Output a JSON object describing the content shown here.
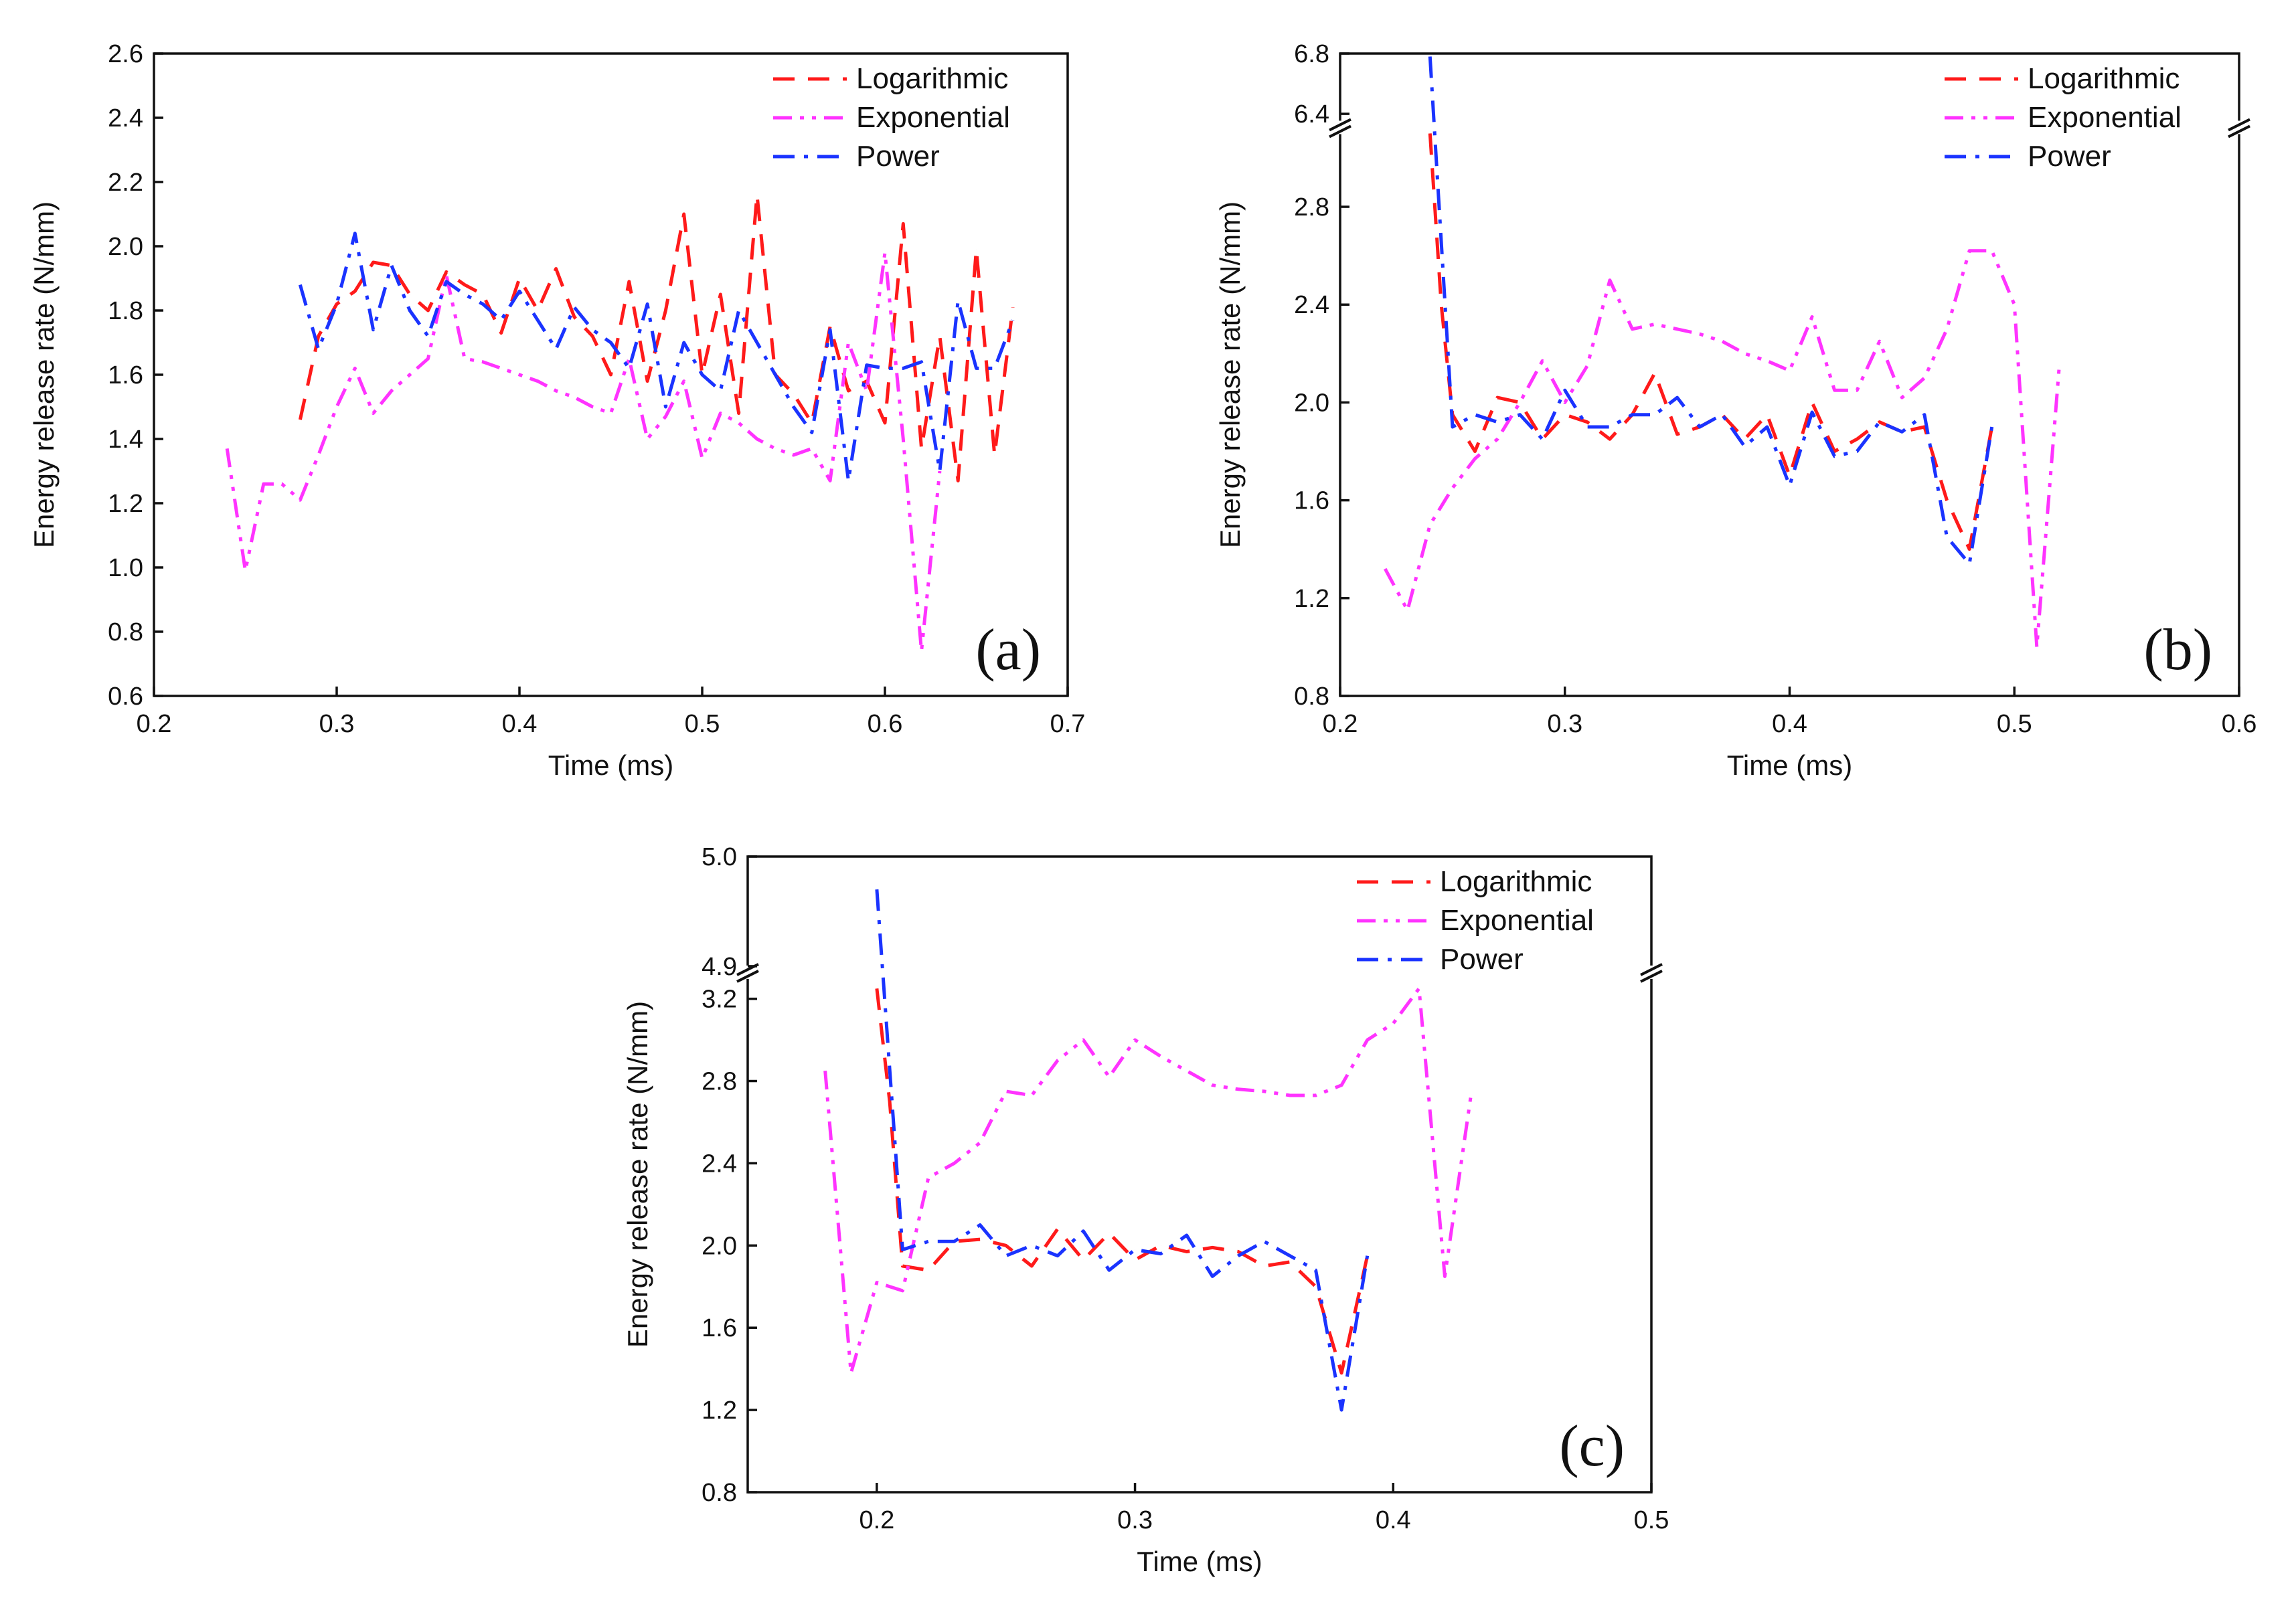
{
  "figure": {
    "background": "#ffffff"
  },
  "series_styles": [
    {
      "name": "Logarithmic",
      "color": "#ff1a1a",
      "dash": "dashed"
    },
    {
      "name": "Exponential",
      "color": "#ff33ff",
      "dash": "dash-dot-dot"
    },
    {
      "name": "Power",
      "color": "#1a33ff",
      "dash": "dash-dot"
    }
  ],
  "chart_data": [
    {
      "type": "line",
      "panel_label": "(a)",
      "xlabel": "Time (ms)",
      "ylabel": "Energy release rate (N/mm)",
      "xlim": [
        0.2,
        0.7
      ],
      "xticks": [
        "0.2",
        "0.3",
        "0.4",
        "0.5",
        "0.6",
        "0.7"
      ],
      "ylim": [
        0.6,
        2.6
      ],
      "yticks": [
        "0.6",
        "0.8",
        "1.0",
        "1.2",
        "1.4",
        "1.6",
        "1.8",
        "2.0",
        "2.2",
        "2.4",
        "2.6"
      ],
      "legend": [
        "Logarithmic",
        "Exponential",
        "Power"
      ],
      "legend_position": "top-right",
      "series": [
        {
          "name": "Logarithmic",
          "x": [
            0.28,
            0.29,
            0.3,
            0.31,
            0.32,
            0.33,
            0.34,
            0.35,
            0.36,
            0.37,
            0.38,
            0.39,
            0.4,
            0.41,
            0.42,
            0.43,
            0.44,
            0.45,
            0.46,
            0.47,
            0.48,
            0.49,
            0.5,
            0.51,
            0.52,
            0.53,
            0.54,
            0.55,
            0.56,
            0.57,
            0.58,
            0.59,
            0.6,
            0.61,
            0.62,
            0.63,
            0.64,
            0.65,
            0.66,
            0.67
          ],
          "y": [
            1.46,
            1.72,
            1.82,
            1.86,
            1.95,
            1.94,
            1.85,
            1.8,
            1.92,
            1.88,
            1.85,
            1.73,
            1.9,
            1.8,
            1.93,
            1.78,
            1.72,
            1.6,
            1.89,
            1.58,
            1.8,
            2.1,
            1.6,
            1.85,
            1.48,
            2.16,
            1.6,
            1.54,
            1.45,
            1.75,
            1.55,
            1.58,
            1.45,
            2.07,
            1.37,
            1.72,
            1.27,
            1.99,
            1.35,
            1.81
          ]
        },
        {
          "name": "Exponential",
          "x": [
            0.24,
            0.25,
            0.26,
            0.27,
            0.28,
            0.29,
            0.3,
            0.31,
            0.32,
            0.33,
            0.34,
            0.35,
            0.36,
            0.37,
            0.38,
            0.39,
            0.4,
            0.41,
            0.42,
            0.43,
            0.44,
            0.45,
            0.46,
            0.47,
            0.48,
            0.49,
            0.5,
            0.51,
            0.52,
            0.53,
            0.54,
            0.55,
            0.56,
            0.57,
            0.58,
            0.59,
            0.6,
            0.61,
            0.62,
            0.63
          ],
          "y": [
            1.37,
            0.99,
            1.26,
            1.26,
            1.21,
            1.35,
            1.5,
            1.62,
            1.48,
            1.55,
            1.6,
            1.65,
            1.91,
            1.65,
            1.64,
            1.62,
            1.6,
            1.58,
            1.55,
            1.53,
            1.5,
            1.48,
            1.65,
            1.4,
            1.47,
            1.58,
            1.34,
            1.48,
            1.45,
            1.4,
            1.37,
            1.35,
            1.37,
            1.27,
            1.7,
            1.55,
            1.98,
            1.4,
            0.74,
            1.3
          ]
        },
        {
          "name": "Power",
          "x": [
            0.28,
            0.29,
            0.3,
            0.31,
            0.32,
            0.33,
            0.34,
            0.35,
            0.36,
            0.37,
            0.38,
            0.39,
            0.4,
            0.41,
            0.42,
            0.43,
            0.44,
            0.45,
            0.46,
            0.47,
            0.48,
            0.49,
            0.5,
            0.51,
            0.52,
            0.53,
            0.54,
            0.55,
            0.56,
            0.57,
            0.58,
            0.59,
            0.6,
            0.61,
            0.62,
            0.63,
            0.64,
            0.65,
            0.66,
            0.67
          ],
          "y": [
            1.88,
            1.68,
            1.82,
            2.04,
            1.74,
            1.94,
            1.8,
            1.72,
            1.89,
            1.85,
            1.82,
            1.77,
            1.86,
            1.77,
            1.68,
            1.81,
            1.74,
            1.7,
            1.62,
            1.82,
            1.5,
            1.7,
            1.6,
            1.55,
            1.8,
            1.7,
            1.6,
            1.5,
            1.42,
            1.74,
            1.27,
            1.63,
            1.62,
            1.62,
            1.64,
            1.3,
            1.83,
            1.62,
            1.62,
            1.77
          ]
        }
      ]
    },
    {
      "type": "line",
      "panel_label": "(b)",
      "xlabel": "Time (ms)",
      "ylabel": "Energy release rate (N/mm)",
      "xlim": [
        0.2,
        0.6
      ],
      "xticks": [
        "0.2",
        "0.3",
        "0.4",
        "0.5",
        "0.6"
      ],
      "ylim_lower": [
        0.8,
        3.1
      ],
      "yticks_lower": [
        "0.8",
        "1.2",
        "1.6",
        "2.0",
        "2.4",
        "2.8"
      ],
      "ylim_upper": [
        6.35,
        6.8
      ],
      "yticks_upper": [
        "6.4",
        "6.8"
      ],
      "axis_break": true,
      "legend": [
        "Logarithmic",
        "Exponential",
        "Power"
      ],
      "legend_position": "top-right",
      "series": [
        {
          "name": "Logarithmic",
          "x": [
            0.24,
            0.245,
            0.25,
            0.26,
            0.27,
            0.28,
            0.29,
            0.3,
            0.31,
            0.32,
            0.33,
            0.34,
            0.35,
            0.36,
            0.37,
            0.38,
            0.39,
            0.4,
            0.41,
            0.42,
            0.43,
            0.44,
            0.45,
            0.46,
            0.47,
            0.48,
            0.49
          ],
          "y": [
            3.1,
            2.4,
            1.95,
            1.8,
            2.02,
            2.0,
            1.85,
            1.95,
            1.92,
            1.85,
            1.95,
            2.12,
            1.87,
            1.9,
            1.95,
            1.85,
            1.95,
            1.7,
            2.0,
            1.8,
            1.85,
            1.92,
            1.88,
            1.9,
            1.6,
            1.4,
            1.9
          ]
        },
        {
          "name": "Exponential",
          "x": [
            0.22,
            0.23,
            0.24,
            0.25,
            0.26,
            0.27,
            0.28,
            0.29,
            0.3,
            0.31,
            0.32,
            0.33,
            0.34,
            0.35,
            0.36,
            0.37,
            0.38,
            0.39,
            0.4,
            0.41,
            0.42,
            0.43,
            0.44,
            0.45,
            0.46,
            0.47,
            0.48,
            0.49,
            0.5,
            0.51,
            0.52
          ],
          "y": [
            1.32,
            1.15,
            1.5,
            1.65,
            1.77,
            1.85,
            2.0,
            2.17,
            2.0,
            2.15,
            2.5,
            2.3,
            2.32,
            2.3,
            2.28,
            2.25,
            2.2,
            2.17,
            2.13,
            2.35,
            2.05,
            2.05,
            2.25,
            2.02,
            2.1,
            2.3,
            2.62,
            2.62,
            2.4,
            1.0,
            2.15
          ]
        },
        {
          "name": "Power",
          "x": [
            0.24,
            0.25,
            0.26,
            0.27,
            0.28,
            0.29,
            0.3,
            0.31,
            0.32,
            0.33,
            0.34,
            0.35,
            0.36,
            0.37,
            0.38,
            0.39,
            0.4,
            0.41,
            0.42,
            0.43,
            0.44,
            0.45,
            0.46,
            0.47,
            0.48,
            0.49
          ],
          "y": [
            6.78,
            1.9,
            1.95,
            1.92,
            1.95,
            1.85,
            2.05,
            1.9,
            1.9,
            1.95,
            1.95,
            2.02,
            1.9,
            1.95,
            1.82,
            1.9,
            1.66,
            1.96,
            1.78,
            1.8,
            1.92,
            1.88,
            1.95,
            1.45,
            1.34,
            1.9
          ]
        }
      ]
    },
    {
      "type": "line",
      "panel_label": "(c)",
      "xlabel": "Time (ms)",
      "ylabel": "Energy release rate (N/mm)",
      "xlim": [
        0.15,
        0.5
      ],
      "xticks": [
        "0.2",
        "0.3",
        "0.4",
        "0.5"
      ],
      "ylim_lower": [
        0.8,
        3.3
      ],
      "yticks_lower": [
        "0.8",
        "1.2",
        "1.6",
        "2.0",
        "2.4",
        "2.8",
        "3.2"
      ],
      "ylim_upper": [
        4.9,
        5.0
      ],
      "yticks_upper": [
        "4.9",
        "5.0"
      ],
      "axis_break": true,
      "legend": [
        "Logarithmic",
        "Exponential",
        "Power"
      ],
      "legend_position": "top-right",
      "series": [
        {
          "name": "Logarithmic",
          "x": [
            0.2,
            0.205,
            0.21,
            0.22,
            0.23,
            0.24,
            0.25,
            0.26,
            0.27,
            0.28,
            0.29,
            0.3,
            0.31,
            0.32,
            0.33,
            0.34,
            0.35,
            0.36,
            0.37,
            0.38,
            0.39
          ],
          "y": [
            3.25,
            2.7,
            1.9,
            1.88,
            2.02,
            2.03,
            2.0,
            1.9,
            2.08,
            1.93,
            2.06,
            1.93,
            2.0,
            1.97,
            1.99,
            1.97,
            1.9,
            1.92,
            1.8,
            1.38,
            1.95
          ]
        },
        {
          "name": "Exponential",
          "x": [
            0.18,
            0.19,
            0.2,
            0.21,
            0.22,
            0.23,
            0.24,
            0.25,
            0.26,
            0.27,
            0.28,
            0.29,
            0.3,
            0.31,
            0.32,
            0.33,
            0.34,
            0.35,
            0.36,
            0.37,
            0.38,
            0.39,
            0.4,
            0.41,
            0.42,
            0.43
          ],
          "y": [
            2.85,
            1.38,
            1.82,
            1.78,
            2.33,
            2.4,
            2.5,
            2.75,
            2.73,
            2.9,
            3.0,
            2.82,
            3.0,
            2.92,
            2.85,
            2.78,
            2.76,
            2.75,
            2.73,
            2.73,
            2.78,
            3.0,
            3.08,
            3.25,
            1.85,
            2.72
          ]
        },
        {
          "name": "Power",
          "x": [
            0.2,
            0.21,
            0.22,
            0.23,
            0.24,
            0.25,
            0.26,
            0.27,
            0.28,
            0.29,
            0.3,
            0.31,
            0.32,
            0.33,
            0.34,
            0.35,
            0.36,
            0.37,
            0.38,
            0.39
          ],
          "y": [
            4.97,
            1.98,
            2.02,
            2.02,
            2.1,
            1.95,
            2.0,
            1.95,
            2.07,
            1.88,
            1.98,
            1.96,
            2.05,
            1.85,
            1.95,
            2.02,
            1.95,
            1.88,
            1.2,
            1.95
          ]
        }
      ]
    }
  ]
}
